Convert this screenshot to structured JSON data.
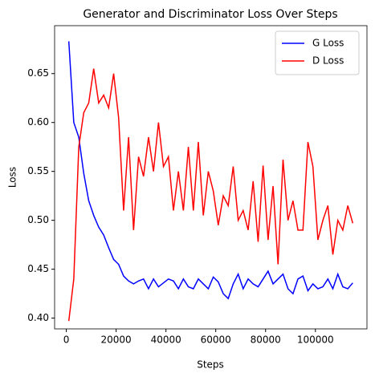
{
  "chart_data": {
    "type": "line",
    "title": "Generator and Discriminator Loss Over Steps",
    "xlabel": "Steps",
    "ylabel": "Loss",
    "x": [
      1000,
      3000,
      5000,
      7000,
      9000,
      11000,
      13000,
      15000,
      17000,
      19000,
      21000,
      23000,
      25000,
      27000,
      29000,
      31000,
      33000,
      35000,
      37000,
      39000,
      41000,
      43000,
      45000,
      47000,
      49000,
      51000,
      53000,
      55000,
      57000,
      59000,
      61000,
      63000,
      65000,
      67000,
      69000,
      71000,
      73000,
      75000,
      77000,
      79000,
      81000,
      83000,
      85000,
      87000,
      89000,
      91000,
      93000,
      95000,
      97000,
      99000,
      101000,
      103000,
      105000,
      107000,
      109000,
      111000,
      113000,
      115000
    ],
    "series": [
      {
        "name": "G Loss",
        "color": "#0000ff",
        "values": [
          0.683,
          0.6,
          0.585,
          0.548,
          0.52,
          0.505,
          0.493,
          0.485,
          0.472,
          0.46,
          0.455,
          0.443,
          0.438,
          0.435,
          0.438,
          0.44,
          0.43,
          0.44,
          0.432,
          0.436,
          0.44,
          0.438,
          0.43,
          0.44,
          0.432,
          0.43,
          0.44,
          0.435,
          0.43,
          0.442,
          0.437,
          0.425,
          0.42,
          0.435,
          0.445,
          0.43,
          0.44,
          0.435,
          0.432,
          0.44,
          0.448,
          0.435,
          0.44,
          0.445,
          0.43,
          0.425,
          0.44,
          0.443,
          0.428,
          0.435,
          0.43,
          0.432,
          0.44,
          0.43,
          0.445,
          0.432,
          0.43,
          0.436
        ]
      },
      {
        "name": "D Loss",
        "color": "#ff0000",
        "values": [
          0.397,
          0.44,
          0.575,
          0.61,
          0.62,
          0.655,
          0.62,
          0.628,
          0.615,
          0.65,
          0.605,
          0.51,
          0.585,
          0.49,
          0.565,
          0.545,
          0.585,
          0.55,
          0.6,
          0.555,
          0.565,
          0.51,
          0.55,
          0.51,
          0.575,
          0.51,
          0.58,
          0.505,
          0.55,
          0.53,
          0.495,
          0.525,
          0.515,
          0.555,
          0.5,
          0.51,
          0.49,
          0.54,
          0.478,
          0.556,
          0.48,
          0.535,
          0.455,
          0.562,
          0.5,
          0.52,
          0.49,
          0.49,
          0.58,
          0.555,
          0.48,
          0.5,
          0.515,
          0.465,
          0.5,
          0.49,
          0.515,
          0.497
        ]
      }
    ],
    "xlim": [
      -4700,
      120700
    ],
    "ylim": [
      0.389,
      0.699
    ],
    "xticks": [
      0,
      20000,
      40000,
      60000,
      80000,
      100000
    ],
    "yticks": [
      {
        "value": 0.4,
        "label": "0.40"
      },
      {
        "value": 0.45,
        "label": "0.45"
      },
      {
        "value": 0.5,
        "label": "0.50"
      },
      {
        "value": 0.55,
        "label": "0.55"
      },
      {
        "value": 0.6,
        "label": "0.60"
      },
      {
        "value": 0.65,
        "label": "0.65"
      }
    ],
    "legend": "upper right"
  }
}
